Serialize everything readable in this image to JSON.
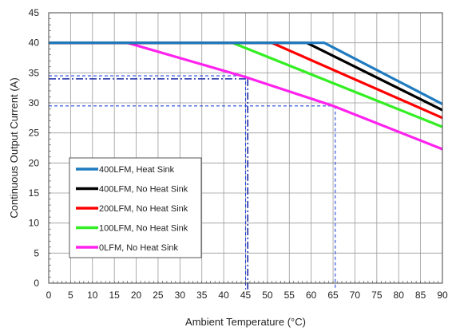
{
  "chart_data": {
    "type": "line",
    "title": "",
    "xlabel": "Ambient Temperature (°C)",
    "ylabel": "Continuous Output Current (A)",
    "xlim": [
      0,
      90
    ],
    "ylim": [
      0,
      45
    ],
    "xticks": [
      0,
      5,
      10,
      15,
      20,
      25,
      30,
      35,
      40,
      45,
      50,
      55,
      60,
      65,
      70,
      75,
      80,
      85,
      90
    ],
    "yticks": [
      0,
      5,
      10,
      15,
      20,
      25,
      30,
      35,
      40,
      45
    ],
    "grid": true,
    "legend_position": "lower-left",
    "series": [
      {
        "name": "400LFM, Heat Sink",
        "color": "#1f7bc0",
        "x": [
          0,
          63,
          90
        ],
        "y": [
          40,
          40,
          29.8
        ]
      },
      {
        "name": "400LFM, No Heat Sink",
        "color": "#000000",
        "x": [
          0,
          59,
          90
        ],
        "y": [
          40,
          40,
          28.8
        ]
      },
      {
        "name": "200LFM, No Heat Sink",
        "color": "#ff0000",
        "x": [
          0,
          51,
          90
        ],
        "y": [
          40,
          40,
          27.5
        ]
      },
      {
        "name": "100LFM, No Heat Sink",
        "color": "#33ee22",
        "x": [
          0,
          42,
          90
        ],
        "y": [
          40,
          40,
          26.0
        ]
      },
      {
        "name": "0LFM, No Heat Sink",
        "color": "#ff22ee",
        "x": [
          0,
          18,
          45,
          65,
          90
        ],
        "y": [
          40,
          40,
          34.3,
          29.5,
          22.3
        ]
      }
    ],
    "reference_lines": [
      {
        "style": "dash-dot",
        "color": "#1a2aa8",
        "x": 45.5,
        "y": 34.0
      },
      {
        "style": "dashed",
        "color": "#2244dd",
        "x": 45.0,
        "y": 34.5
      },
      {
        "style": "dashed",
        "color": "#2244dd",
        "x": 65.5,
        "y": 29.5
      }
    ]
  }
}
